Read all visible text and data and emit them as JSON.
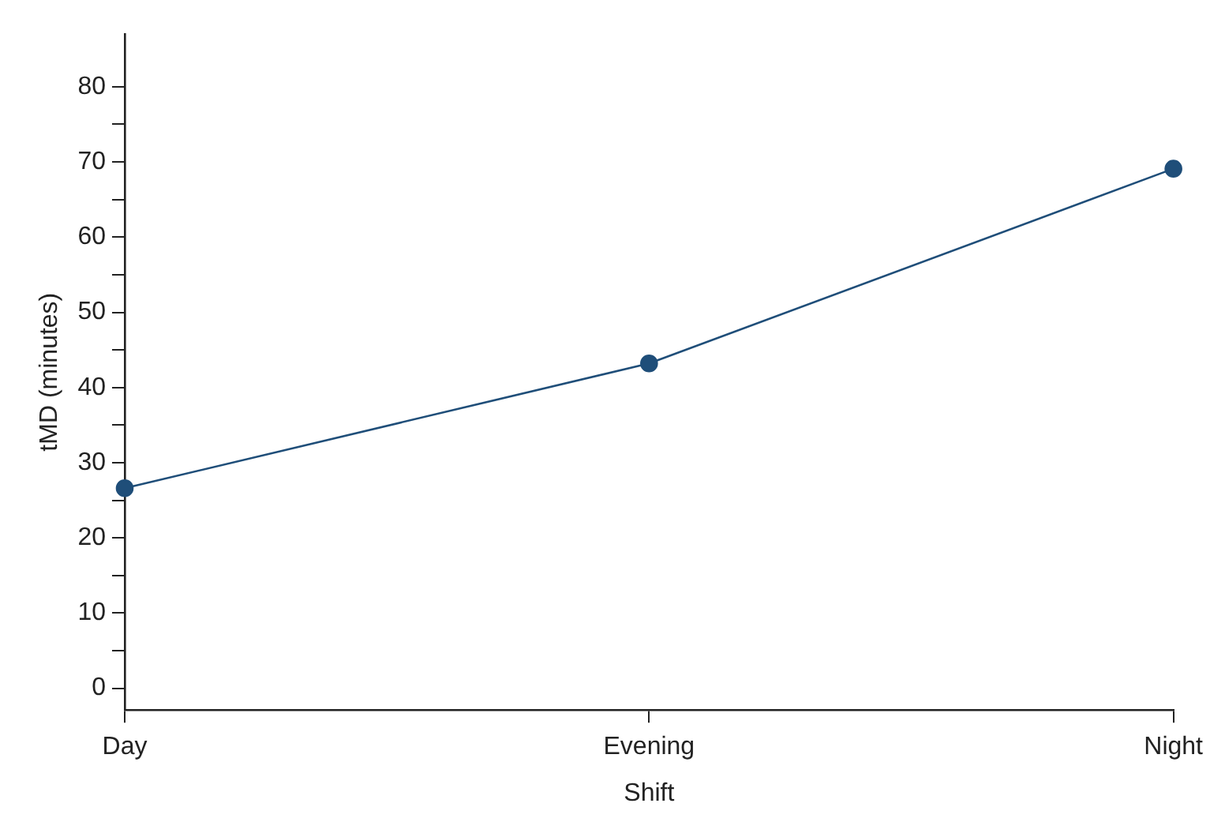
{
  "chart_data": {
    "type": "line",
    "xlabel": "Shift",
    "ylabel": "tMD (minutes)",
    "categories": [
      "Day",
      "Evening",
      "Night"
    ],
    "series": [
      {
        "color": "#1f4e79",
        "values": [
          26.6,
          43.2,
          69.1
        ]
      }
    ],
    "ylim": [
      -2.9,
      87
    ],
    "yticks": [
      0,
      {
        "value": 5,
        "label": null
      },
      10,
      {
        "value": 15,
        "label": null
      },
      20,
      {
        "value": 25,
        "label": null
      },
      30,
      {
        "value": 35,
        "label": null
      },
      40,
      {
        "value": 45,
        "label": null
      },
      50,
      {
        "value": 55,
        "label": null
      },
      60,
      {
        "value": 65,
        "label": null
      },
      70,
      {
        "value": 75,
        "label": null
      },
      80
    ],
    "grid": false,
    "legend": false,
    "marker": "circle",
    "line_style": "solid"
  }
}
